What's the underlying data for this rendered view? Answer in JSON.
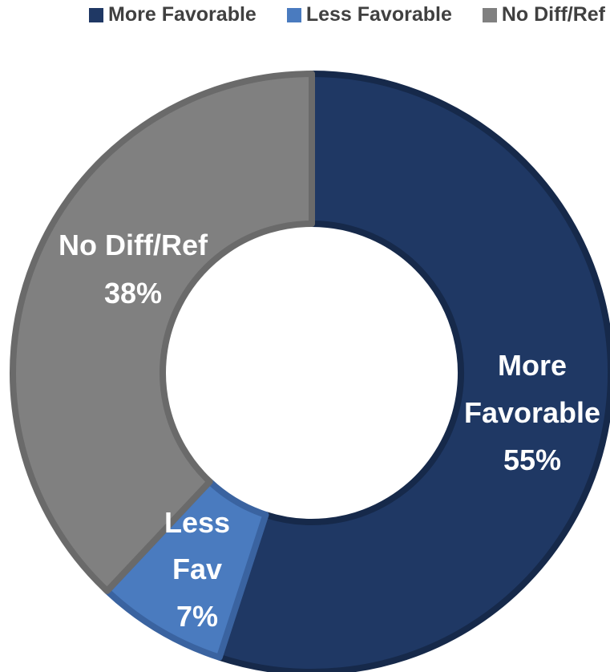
{
  "chart_data": {
    "type": "pie",
    "variant": "donut",
    "title": "",
    "legend": {
      "placement": "top-right",
      "entries": [
        "More Favorable",
        "Less Favorable",
        "No Diff/Ref"
      ]
    },
    "slices": [
      {
        "name": "More Favorable",
        "value": 55,
        "label_lines": [
          "More",
          "Favorable",
          "55%"
        ],
        "color": "#1f3864",
        "border": "#16294a"
      },
      {
        "name": "Less Favorable",
        "value": 7,
        "label_lines": [
          "Less",
          "Fav",
          "7%"
        ],
        "color": "#4a7bbf",
        "border": "#3a63a0"
      },
      {
        "name": "No Diff/Ref",
        "value": 38,
        "label_lines": [
          "No Diff/Ref",
          "38%"
        ],
        "color": "#808080",
        "border": "#6a6a6a"
      }
    ],
    "start_angle_deg": 0,
    "direction": "clockwise"
  }
}
